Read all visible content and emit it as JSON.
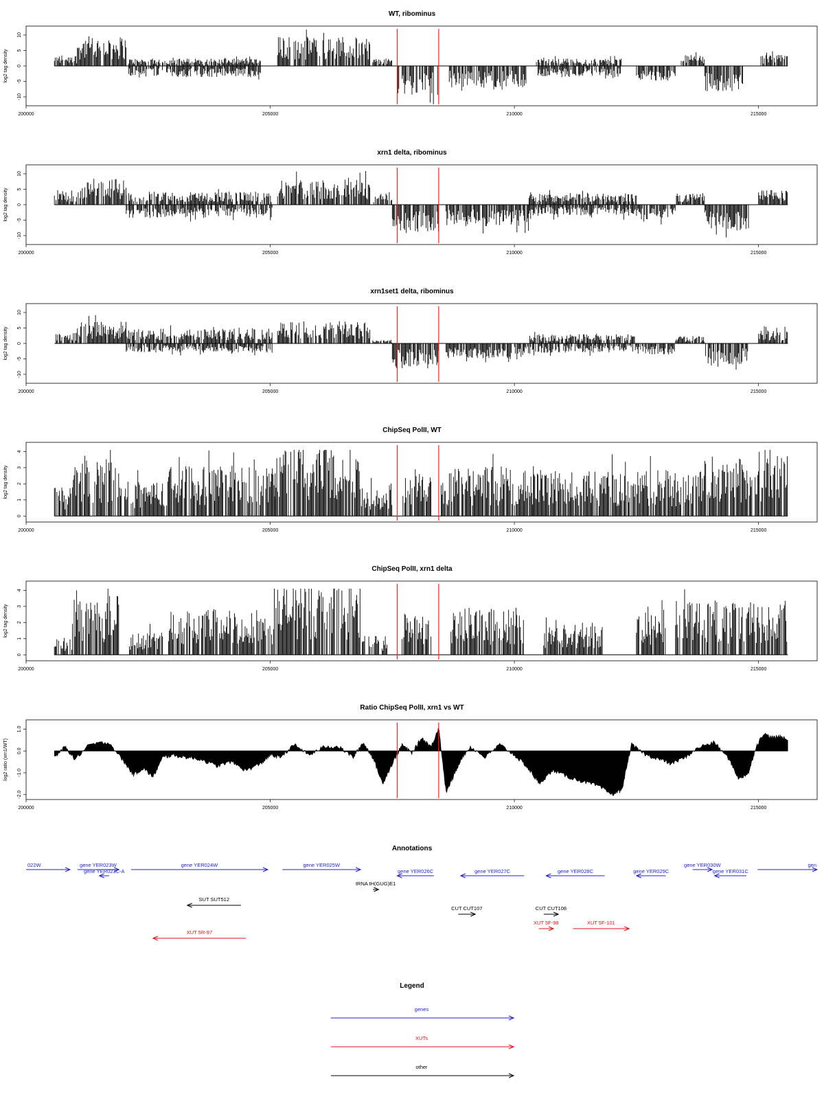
{
  "colors": {
    "genes": "#1f1fd6",
    "xuts": "#e01010",
    "other": "#000000",
    "marker": "#ff2020"
  },
  "x_axis": {
    "range": [
      200000,
      216200
    ],
    "ticks": [
      "200000",
      "205000",
      "210000",
      "215000"
    ]
  },
  "chart_data": [
    {
      "type": "bar",
      "title": "WT, ribominus",
      "ylabel": "log2 tag density",
      "ylim": [
        -12,
        12
      ],
      "yticks": [
        "10",
        "5",
        "0",
        "-5",
        "-10"
      ],
      "markers": [
        207600,
        208450
      ],
      "segments": [
        {
          "x": [
            200580,
            201050
          ],
          "strand": "+",
          "amp": 3
        },
        {
          "x": [
            201050,
            202050
          ],
          "strand": "+",
          "amp": 8
        },
        {
          "x": [
            202100,
            204800
          ],
          "strand": "+",
          "amp": 2
        },
        {
          "x": [
            202100,
            204800
          ],
          "strand": "-",
          "amp": 3
        },
        {
          "x": [
            205150,
            207050
          ],
          "strand": "+",
          "amp": 8
        },
        {
          "x": [
            207100,
            207500
          ],
          "strand": "+",
          "amp": 2
        },
        {
          "x": [
            207600,
            208450
          ],
          "strand": "-",
          "amp": 8
        },
        {
          "x": [
            208650,
            210250
          ],
          "strand": "-",
          "amp": 6
        },
        {
          "x": [
            210450,
            212200
          ],
          "strand": "-",
          "amp": 3
        },
        {
          "x": [
            210450,
            212200
          ],
          "strand": "+",
          "amp": 2
        },
        {
          "x": [
            212500,
            213300
          ],
          "strand": "-",
          "amp": 4
        },
        {
          "x": [
            213400,
            213900
          ],
          "strand": "+",
          "amp": 3
        },
        {
          "x": [
            213900,
            214700
          ],
          "strand": "-",
          "amp": 7
        },
        {
          "x": [
            215050,
            215600
          ],
          "strand": "+",
          "amp": 3
        }
      ]
    },
    {
      "type": "bar",
      "title": "xrn1 delta, ribominus",
      "ylabel": "log2 tag density",
      "ylim": [
        -12,
        12
      ],
      "yticks": [
        "10",
        "5",
        "0",
        "-5",
        "-10"
      ],
      "markers": [
        207600,
        208450
      ],
      "segments": [
        {
          "x": [
            200580,
            201050
          ],
          "strand": "+",
          "amp": 4
        },
        {
          "x": [
            201050,
            202050
          ],
          "strand": "+",
          "amp": 7
        },
        {
          "x": [
            202050,
            205050
          ],
          "strand": "+",
          "amp": 3.5
        },
        {
          "x": [
            202050,
            205050
          ],
          "strand": "-",
          "amp": 3.5
        },
        {
          "x": [
            205150,
            207050
          ],
          "strand": "+",
          "amp": 7
        },
        {
          "x": [
            207100,
            207500
          ],
          "strand": "+",
          "amp": 3
        },
        {
          "x": [
            207500,
            208450
          ],
          "strand": "-",
          "amp": 8
        },
        {
          "x": [
            208600,
            210300
          ],
          "strand": "-",
          "amp": 6
        },
        {
          "x": [
            210300,
            212500
          ],
          "strand": "+",
          "amp": 3
        },
        {
          "x": [
            210300,
            212500
          ],
          "strand": "-",
          "amp": 3
        },
        {
          "x": [
            212500,
            213300
          ],
          "strand": "-",
          "amp": 4
        },
        {
          "x": [
            213300,
            213900
          ],
          "strand": "+",
          "amp": 3
        },
        {
          "x": [
            213900,
            214800
          ],
          "strand": "-",
          "amp": 7
        },
        {
          "x": [
            215000,
            215600
          ],
          "strand": "+",
          "amp": 4
        }
      ]
    },
    {
      "type": "bar",
      "title": "xrn1set1 delta, ribominus",
      "ylabel": "log2 tag density",
      "ylim": [
        -12,
        12
      ],
      "yticks": [
        "10",
        "5",
        "0",
        "-5",
        "-10"
      ],
      "markers": [
        207600,
        208450
      ],
      "segments": [
        {
          "x": [
            200580,
            201050
          ],
          "strand": "+",
          "amp": 3
        },
        {
          "x": [
            201050,
            202050
          ],
          "strand": "+",
          "amp": 6
        },
        {
          "x": [
            202050,
            205050
          ],
          "strand": "+",
          "amp": 4
        },
        {
          "x": [
            202050,
            205050
          ],
          "strand": "-",
          "amp": 2.5
        },
        {
          "x": [
            205150,
            207050
          ],
          "strand": "+",
          "amp": 6
        },
        {
          "x": [
            207100,
            207500
          ],
          "strand": "+",
          "amp": 1
        },
        {
          "x": [
            207500,
            208450
          ],
          "strand": "-",
          "amp": 7
        },
        {
          "x": [
            208600,
            210300
          ],
          "strand": "-",
          "amp": 4
        },
        {
          "x": [
            210300,
            212500
          ],
          "strand": "+",
          "amp": 2.5
        },
        {
          "x": [
            210300,
            212500
          ],
          "strand": "-",
          "amp": 2.5
        },
        {
          "x": [
            212500,
            213300
          ],
          "strand": "-",
          "amp": 3
        },
        {
          "x": [
            213300,
            213900
          ],
          "strand": "+",
          "amp": 2
        },
        {
          "x": [
            213900,
            214800
          ],
          "strand": "-",
          "amp": 6
        },
        {
          "x": [
            215000,
            215600
          ],
          "strand": "+",
          "amp": 3.5
        }
      ]
    },
    {
      "type": "bar",
      "title": "ChipSeq PolII, WT",
      "ylabel": "log2 tag density",
      "ylim": [
        -0.2,
        4.4
      ],
      "yticks": [
        "4",
        "3",
        "2",
        "1",
        "0"
      ],
      "markers": [
        207600,
        208450
      ],
      "segments": [
        {
          "x": [
            200580,
            200950
          ],
          "strand": "+",
          "amp": 1.5
        },
        {
          "x": [
            200950,
            201900
          ],
          "strand": "+",
          "amp": 3.2
        },
        {
          "x": [
            201900,
            202900
          ],
          "strand": "+",
          "amp": 1.8
        },
        {
          "x": [
            202900,
            205100
          ],
          "strand": "+",
          "amp": 2.6
        },
        {
          "x": [
            205100,
            206850
          ],
          "strand": "+",
          "amp": 3.9
        },
        {
          "x": [
            206850,
            207500
          ],
          "strand": "+",
          "amp": 1.6
        },
        {
          "x": [
            207700,
            208300
          ],
          "strand": "+",
          "amp": 2.5
        },
        {
          "x": [
            208500,
            210400
          ],
          "strand": "+",
          "amp": 2.6
        },
        {
          "x": [
            210400,
            212600
          ],
          "strand": "+",
          "amp": 2.4
        },
        {
          "x": [
            212600,
            213850
          ],
          "strand": "+",
          "amp": 2.4
        },
        {
          "x": [
            213850,
            215600
          ],
          "strand": "+",
          "amp": 3.1
        }
      ]
    },
    {
      "type": "bar",
      "title": "ChipSeq PolII, xrn1 delta",
      "ylabel": "log2 tag density",
      "ylim": [
        -0.2,
        4.4
      ],
      "yticks": [
        "4",
        "3",
        "2",
        "1",
        "0"
      ],
      "markers": [
        207600,
        208450
      ],
      "segments": [
        {
          "x": [
            200580,
            200950
          ],
          "strand": "+",
          "amp": 0.9
        },
        {
          "x": [
            200950,
            201900
          ],
          "strand": "+",
          "amp": 3.0
        },
        {
          "x": [
            202100,
            202800
          ],
          "strand": "+",
          "amp": 1.2
        },
        {
          "x": [
            202900,
            205050
          ],
          "strand": "+",
          "amp": 2.4
        },
        {
          "x": [
            205050,
            206850
          ],
          "strand": "+",
          "amp": 3.7
        },
        {
          "x": [
            206850,
            207400
          ],
          "strand": "+",
          "amp": 1.0
        },
        {
          "x": [
            207700,
            208300
          ],
          "strand": "+",
          "amp": 2.2
        },
        {
          "x": [
            208700,
            210200
          ],
          "strand": "+",
          "amp": 2.4
        },
        {
          "x": [
            210600,
            211800
          ],
          "strand": "+",
          "amp": 1.6
        },
        {
          "x": [
            212500,
            213100
          ],
          "strand": "+",
          "amp": 2.2
        },
        {
          "x": [
            213300,
            215600
          ],
          "strand": "+",
          "amp": 2.8
        }
      ]
    },
    {
      "type": "area",
      "title": "Ratio ChipSeq PolII, xrn1 vs WT",
      "ylabel": "log2 ratio (xrn1/WT)",
      "ylim": [
        -2.1,
        1.3
      ],
      "yticks": [
        "1.0",
        "0.0",
        "-1.0",
        "-2.0"
      ],
      "markers": [
        207600,
        208450
      ],
      "x": [
        200580,
        200800,
        201000,
        201300,
        201700,
        202000,
        202200,
        202400,
        202600,
        202800,
        203000,
        203300,
        203600,
        203900,
        204200,
        204500,
        204800,
        205000,
        205200,
        205500,
        205800,
        206100,
        206400,
        206700,
        206900,
        207100,
        207300,
        207500,
        207700,
        207900,
        208100,
        208300,
        208450,
        208600,
        208750,
        208900,
        209100,
        209400,
        209700,
        210000,
        210200,
        210350,
        210500,
        210800,
        211100,
        211400,
        211700,
        212000,
        212200,
        212400,
        212700,
        213000,
        213200,
        213500,
        213800,
        214100,
        214400,
        214600,
        214800,
        214950,
        215100,
        215300,
        215450,
        215600
      ],
      "values": [
        -0.3,
        0.2,
        -0.4,
        0.3,
        0.4,
        -0.5,
        -1.1,
        -0.8,
        -1.2,
        -0.3,
        -0.2,
        -0.3,
        -0.4,
        -0.7,
        -0.5,
        -0.9,
        -0.6,
        -0.2,
        -0.3,
        0.3,
        -0.2,
        0.2,
        0.2,
        -0.3,
        0.4,
        -0.3,
        -1.5,
        -0.6,
        0.3,
        -0.1,
        0.6,
        0.2,
        1.1,
        -1.9,
        -1.2,
        -0.4,
        0.2,
        -0.3,
        0.3,
        -0.2,
        -0.6,
        -1.0,
        -1.5,
        -0.9,
        -1.2,
        -1.4,
        -1.6,
        -2.0,
        -1.8,
        0.3,
        -0.2,
        -0.4,
        -0.6,
        -0.3,
        0.2,
        0.4,
        -0.4,
        -1.3,
        -1.0,
        0.2,
        0.8,
        0.6,
        0.7,
        0.5
      ]
    }
  ],
  "annotations": {
    "title": "Annotations",
    "genes": [
      {
        "label": "022W",
        "from": 200000,
        "to": 200900
      },
      {
        "label": "gene YER023W",
        "from": 201050,
        "to": 201900
      },
      {
        "label": "gene YER023C-A",
        "from": 201700,
        "to": 201500
      },
      {
        "label": "gene YER024W",
        "from": 202150,
        "to": 204950
      },
      {
        "label": "gene YER025W",
        "from": 205250,
        "to": 206850
      },
      {
        "label": "gene YER026C",
        "from": 208350,
        "to": 207600
      },
      {
        "label": "gene YER027C",
        "from": 210200,
        "to": 208900
      },
      {
        "label": "gene YER028C",
        "from": 211850,
        "to": 210650
      },
      {
        "label": "gene YER029C",
        "from": 213100,
        "to": 212500
      },
      {
        "label": "gene YER030W",
        "from": 213650,
        "to": 214050
      },
      {
        "label": "gene YER031C",
        "from": 214750,
        "to": 214100
      },
      {
        "label": "gen",
        "from": 214980,
        "to": 216200
      }
    ],
    "other": [
      {
        "label": "tRNA tH(GUG)E1",
        "from": 207100,
        "to": 207220
      },
      {
        "label": "SUT SUT512",
        "from": 204400,
        "to": 203300
      },
      {
        "label": "CUT CUT107",
        "from": 208850,
        "to": 209200
      },
      {
        "label": "CUT CUT108",
        "from": 210600,
        "to": 210900
      }
    ],
    "xuts": [
      {
        "label": "XUT 5R-97",
        "from": 204500,
        "to": 202600
      },
      {
        "label": "XUT 5F-98",
        "from": 210500,
        "to": 210800
      },
      {
        "label": "XUT 5F-101",
        "from": 211200,
        "to": 212350
      }
    ]
  },
  "legend": {
    "title": "Legend",
    "items": [
      {
        "label": "genes",
        "key": "genes"
      },
      {
        "label": "XUTs",
        "key": "xuts"
      },
      {
        "label": "other",
        "key": "other"
      }
    ]
  }
}
